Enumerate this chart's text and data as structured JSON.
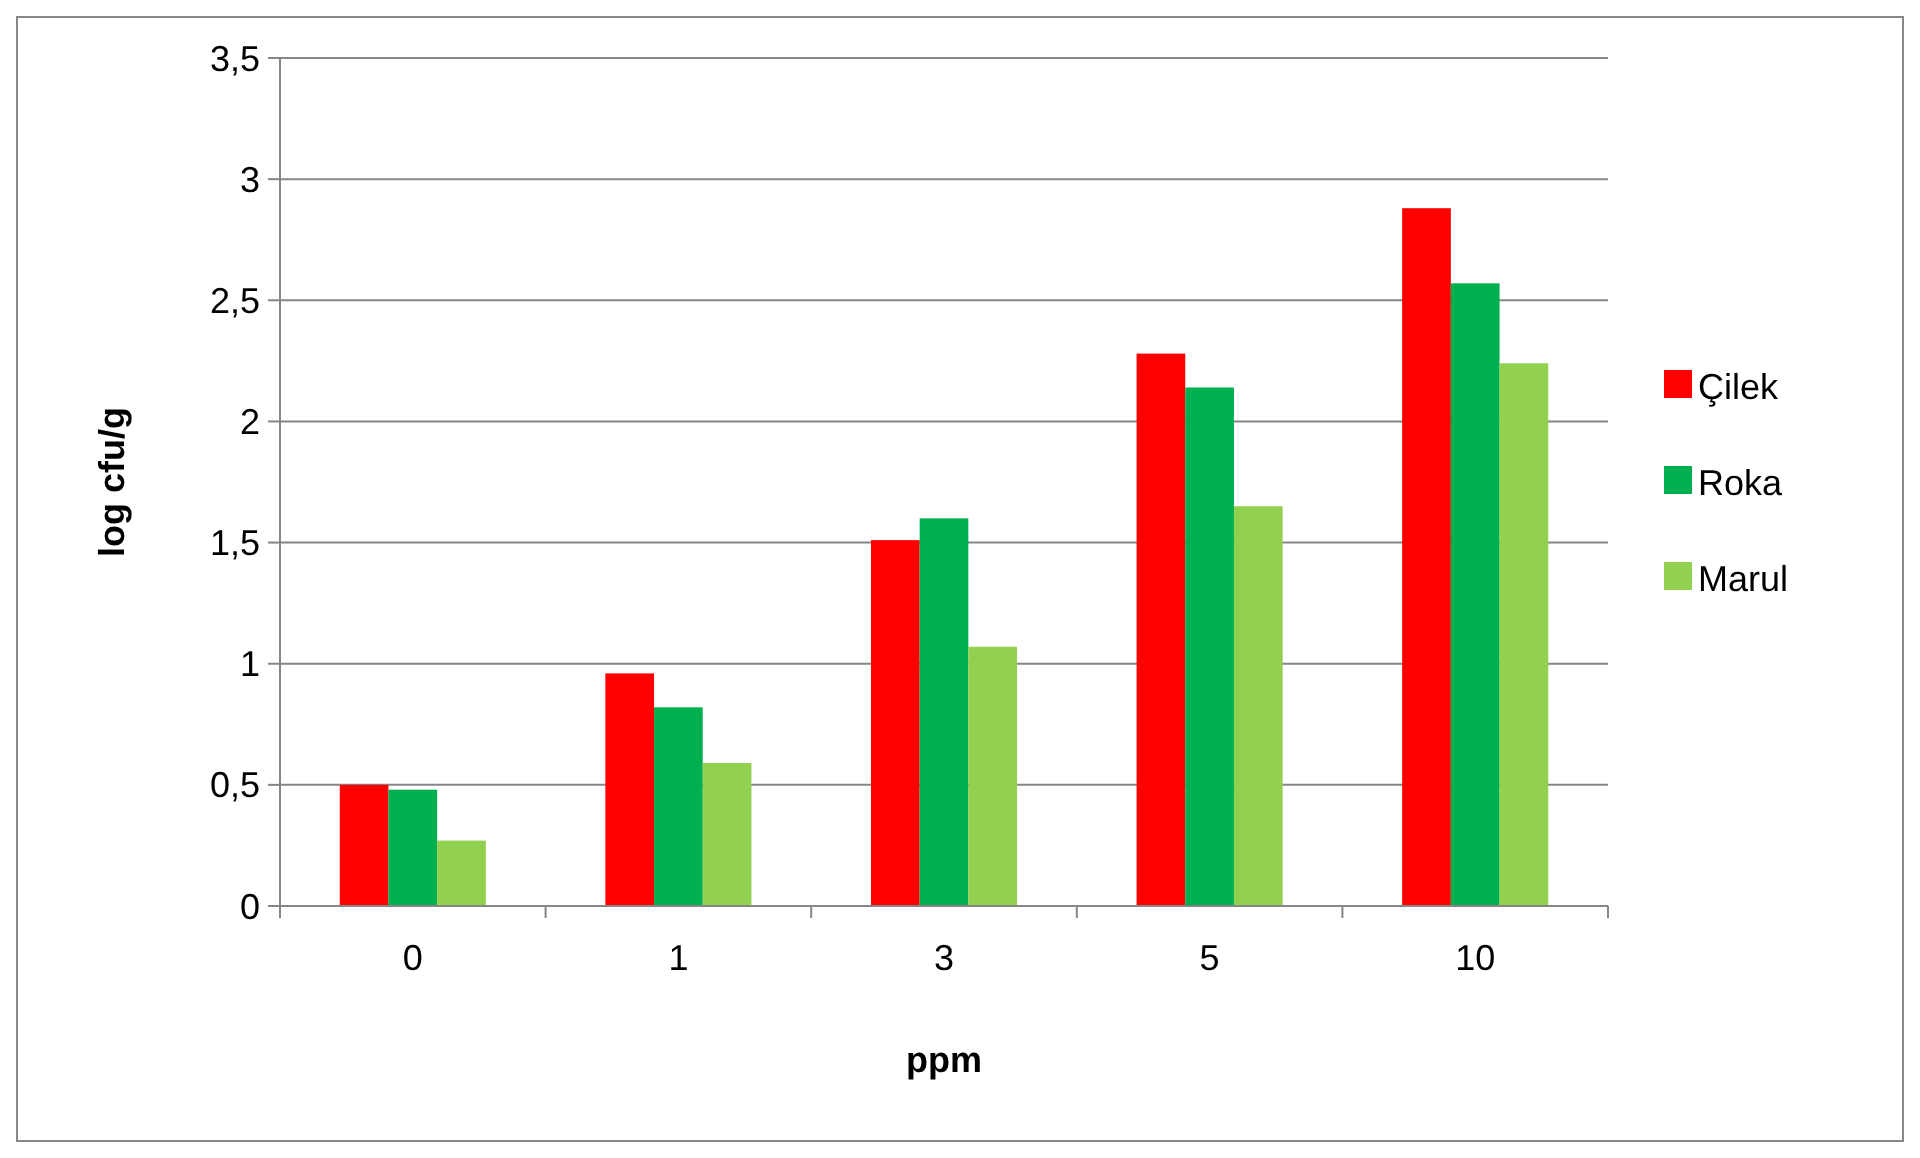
{
  "chart_data": {
    "type": "bar",
    "xlabel": "ppm",
    "ylabel": "log cfu/g",
    "categories": [
      "0",
      "1",
      "3",
      "5",
      "10"
    ],
    "series": [
      {
        "name": "Çilek",
        "color": "#ff0000",
        "values": [
          0.5,
          0.96,
          1.51,
          2.28,
          2.88
        ]
      },
      {
        "name": "Roka",
        "color": "#00b050",
        "values": [
          0.48,
          0.82,
          1.6,
          2.14,
          2.57
        ]
      },
      {
        "name": "Marul",
        "color": "#92d050",
        "values": [
          0.27,
          0.59,
          1.07,
          1.65,
          2.24
        ]
      }
    ],
    "ylim": [
      0,
      3.5
    ],
    "yticks": [
      0,
      {
        "value": 0.5,
        "label": "0,5"
      },
      1,
      {
        "value": 1.5,
        "label": "1,5"
      },
      2,
      {
        "value": 2.5,
        "label": "2,5"
      },
      3,
      {
        "value": 3.5,
        "label": "3,5"
      }
    ],
    "grid": "y",
    "legend": "right"
  }
}
